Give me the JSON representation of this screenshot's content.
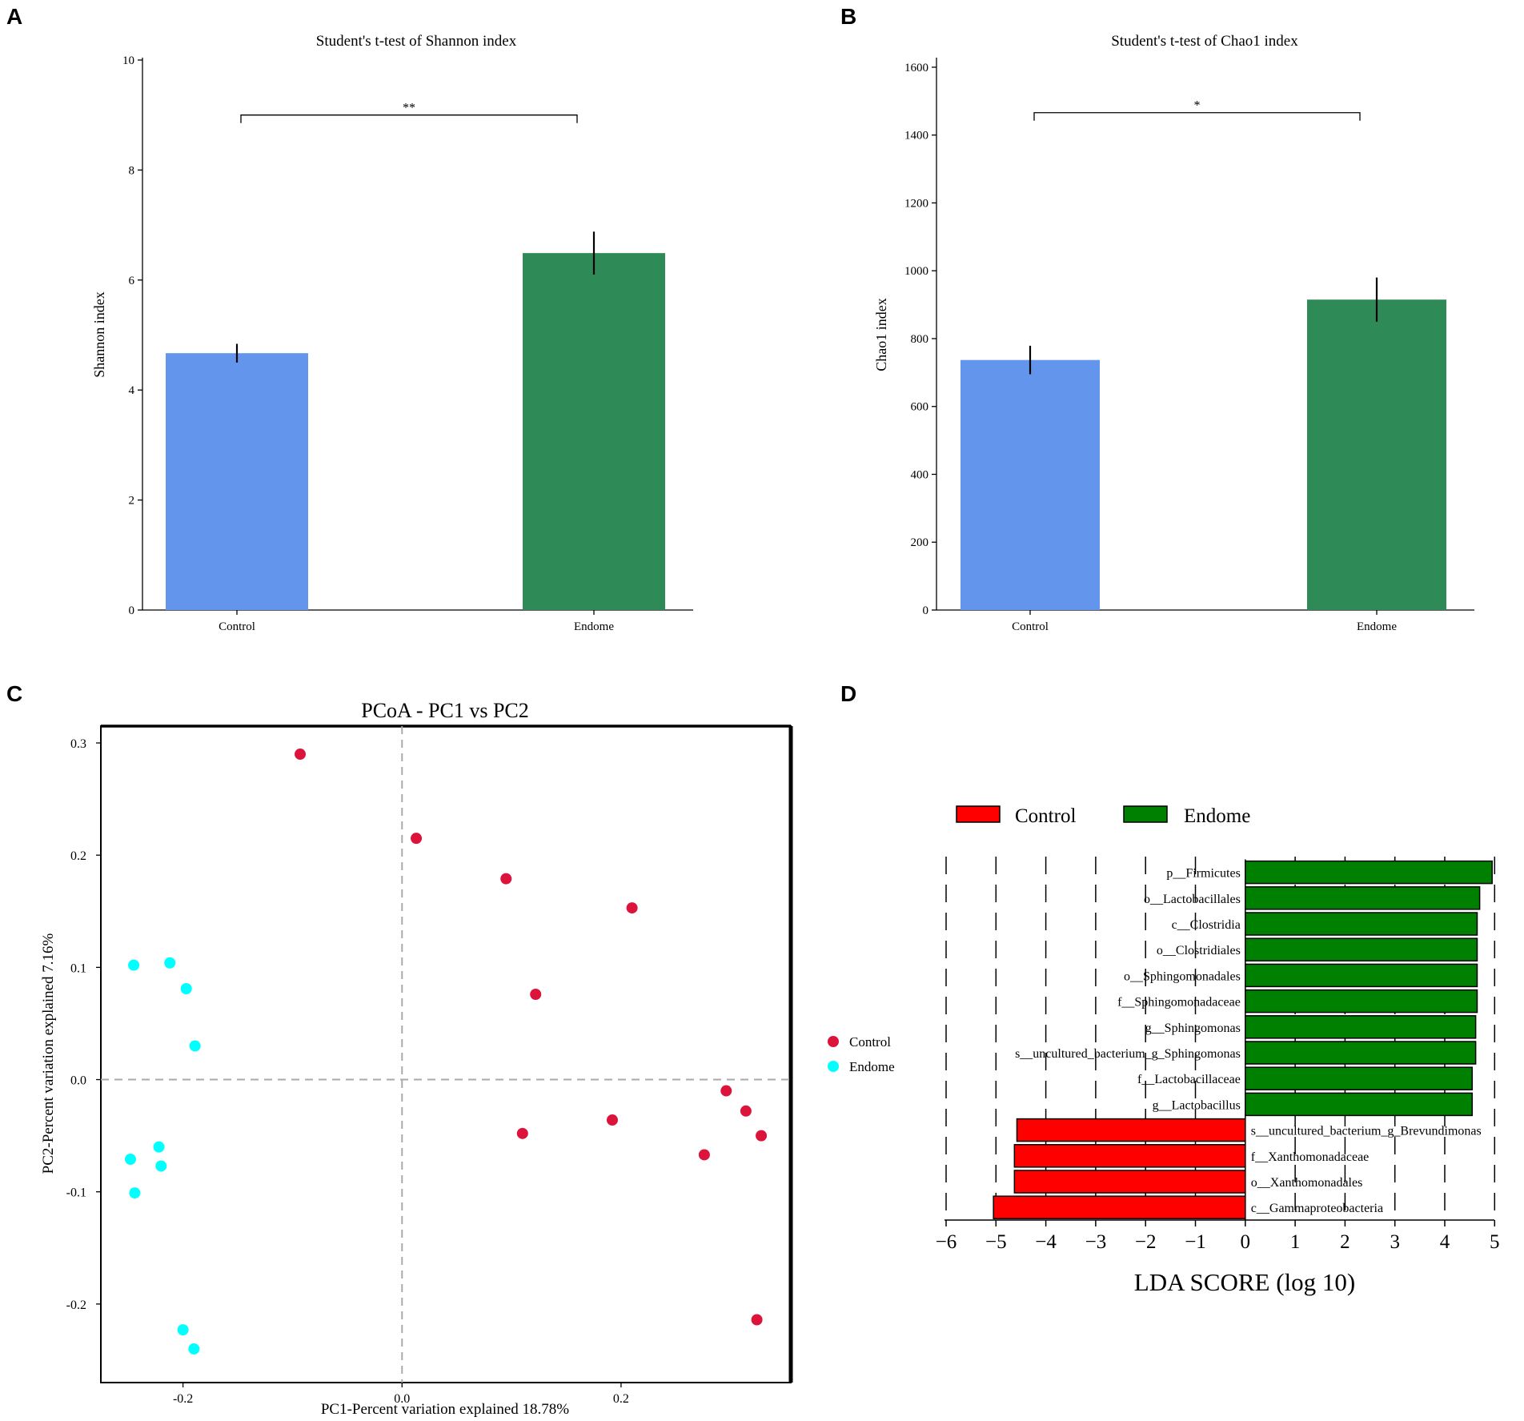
{
  "panels": {
    "a": "A",
    "b": "B",
    "c": "C",
    "d": "D"
  },
  "chart_data": [
    {
      "id": "A",
      "type": "bar",
      "title": "Student's t-test of Shannon index",
      "ylabel": "Shannon index",
      "xlabel": "",
      "categories": [
        "Control",
        "Endome"
      ],
      "values": [
        4.67,
        6.49
      ],
      "errors": [
        0.17,
        0.39
      ],
      "colors": [
        "#6495ED",
        "#2E8B57"
      ],
      "ylim": [
        0,
        10
      ],
      "yticks": [
        0,
        2,
        4,
        6,
        8,
        10
      ],
      "significance": {
        "label": "**",
        "level": 9.0
      }
    },
    {
      "id": "B",
      "type": "bar",
      "title": "Student's t-test of Chao1 index",
      "ylabel": "Chao1 index",
      "xlabel": "",
      "categories": [
        "Control",
        "Endome"
      ],
      "values": [
        737,
        915
      ],
      "errors": [
        42,
        65
      ],
      "colors": [
        "#6495ED",
        "#2E8B57"
      ],
      "ylim": [
        0,
        1640
      ],
      "yticks": [
        0,
        200,
        400,
        600,
        800,
        1000,
        1200,
        1400,
        1600
      ],
      "significance": {
        "label": "*",
        "level": 1466
      }
    },
    {
      "id": "C",
      "type": "scatter",
      "title": "PCoA - PC1 vs PC2",
      "xlabel": "PC1-Percent variation explained 18.78%",
      "ylabel": "PC2-Percent variation explained 7.16%",
      "xlim": [
        -0.275,
        0.355
      ],
      "ylim": [
        -0.27,
        0.315
      ],
      "xticks": [
        -0.2,
        0.0,
        0.2
      ],
      "xtick_labels": [
        "-0.2",
        "0.0",
        "0.2"
      ],
      "yticks": [
        -0.2,
        -0.1,
        0.0,
        0.1,
        0.2,
        0.3
      ],
      "ytick_labels": [
        "-0.2",
        "-0.1",
        "0.0",
        "0.1",
        "0.2",
        "0.3"
      ],
      "reference_lines": {
        "x": 0.0,
        "y": 0.0
      },
      "legend": [
        "Control",
        "Endome"
      ],
      "series": [
        {
          "name": "Control",
          "color": "#DC143C",
          "points": [
            [
              -0.093,
              0.29
            ],
            [
              0.013,
              0.215
            ],
            [
              0.095,
              0.179
            ],
            [
              0.21,
              0.153
            ],
            [
              0.122,
              0.076
            ],
            [
              0.296,
              -0.01
            ],
            [
              0.314,
              -0.028
            ],
            [
              0.192,
              -0.036
            ],
            [
              0.11,
              -0.048
            ],
            [
              0.328,
              -0.05
            ],
            [
              0.276,
              -0.067
            ],
            [
              0.324,
              -0.214
            ]
          ]
        },
        {
          "name": "Endome",
          "color": "#00FFFF",
          "points": [
            [
              -0.245,
              0.102
            ],
            [
              -0.212,
              0.104
            ],
            [
              -0.197,
              0.081
            ],
            [
              -0.189,
              0.03
            ],
            [
              -0.222,
              -0.06
            ],
            [
              -0.248,
              -0.071
            ],
            [
              -0.22,
              -0.077
            ],
            [
              -0.244,
              -0.101
            ],
            [
              -0.2,
              -0.223
            ],
            [
              -0.19,
              -0.24
            ]
          ]
        }
      ]
    },
    {
      "id": "D",
      "type": "bar",
      "orientation": "horizontal",
      "xlabel": "LDA SCORE (log 10)",
      "xlim": [
        -6,
        5
      ],
      "xticks": [
        -6,
        -5,
        -4,
        -3,
        -2,
        -1,
        0,
        1,
        2,
        3,
        4,
        5
      ],
      "xtick_labels": [
        "−6",
        "−5",
        "−4",
        "−3",
        "−2",
        "−1",
        "0",
        "1",
        "2",
        "3",
        "4",
        "5"
      ],
      "legend": [
        {
          "name": "Control",
          "color": "#FF0000"
        },
        {
          "name": "Endome",
          "color": "#008000"
        }
      ],
      "categories": [
        "p__Firmicutes",
        "o__Lactobacillales",
        "c__Clostridia",
        "o__Clostridiales",
        "o__Sphingomonadales",
        "f__Sphingomonadaceae",
        "g__Sphingomonas",
        "s__uncultured_bacterium_g_Sphingomonas",
        "f__Lactobacillaceae",
        "g__Lactobacillus",
        "s__uncultured_bacterium_g_Brevundimonas",
        "f__Xanthomonadaceae",
        "o__Xanthomonadales",
        "c__Gammaproteobacteria"
      ],
      "values": [
        4.95,
        4.7,
        4.65,
        4.65,
        4.65,
        4.65,
        4.62,
        4.62,
        4.55,
        4.55,
        -4.58,
        -4.63,
        -4.63,
        -5.05
      ],
      "groups": [
        "Endome",
        "Endome",
        "Endome",
        "Endome",
        "Endome",
        "Endome",
        "Endome",
        "Endome",
        "Endome",
        "Endome",
        "Control",
        "Control",
        "Control",
        "Control"
      ]
    }
  ]
}
